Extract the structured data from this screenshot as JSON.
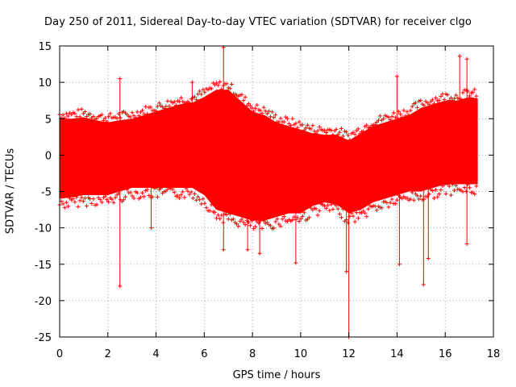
{
  "chart_data": {
    "type": "scatter",
    "title": "Day 250 of 2011, Sidereal Day-to-day VTEC variation (SDTVAR) for receiver clgo",
    "xlabel": "GPS time / hours",
    "ylabel": "SDTVAR / TECUs",
    "xlim": [
      0,
      18
    ],
    "ylim": [
      -25,
      15
    ],
    "xticks": [
      "0",
      "2",
      "4",
      "6",
      "8",
      "10",
      "12",
      "14",
      "16",
      "18"
    ],
    "yticks": [
      "15",
      "10",
      "5",
      "0",
      "-5",
      "-10",
      "-15",
      "-20",
      "-25"
    ],
    "grid": true,
    "series": [
      {
        "name": "SDTVAR",
        "color": "#ff0000",
        "marker": "+",
        "data_extent_hours": [
          0,
          17.35
        ],
        "envelope": {
          "x": [
            0,
            0.5,
            1,
            1.5,
            2,
            2.5,
            3,
            3.5,
            4,
            4.5,
            5,
            5.5,
            6,
            6.5,
            7,
            7.5,
            8,
            8.5,
            9,
            9.5,
            10,
            10.5,
            11,
            11.5,
            12,
            12.5,
            13,
            13.5,
            14,
            14.5,
            15,
            15.5,
            16,
            16.5,
            17,
            17.35
          ],
          "upper": [
            5,
            5,
            5.2,
            4.8,
            4.5,
            4.8,
            5,
            5.5,
            6,
            6.5,
            7,
            7.2,
            8,
            9,
            9,
            7.5,
            6,
            5.5,
            4.5,
            4,
            3.5,
            3,
            2.8,
            2.8,
            2,
            3,
            4,
            4.5,
            5,
            5.5,
            6.5,
            7,
            7.5,
            7.5,
            8,
            7.8
          ],
          "lower": [
            -6,
            -5.8,
            -5.5,
            -5.5,
            -5.5,
            -5,
            -4.5,
            -4.5,
            -4.5,
            -4.5,
            -4.5,
            -4.5,
            -5.5,
            -7.5,
            -8,
            -8.5,
            -9,
            -9,
            -8.5,
            -8,
            -8,
            -7,
            -6.5,
            -6.8,
            -8,
            -7.5,
            -6.5,
            -6,
            -5.5,
            -5,
            -5,
            -4.5,
            -4,
            -4,
            -4,
            -4
          ]
        },
        "spikes": [
          {
            "x": 2.5,
            "y": 10.5
          },
          {
            "x": 2.5,
            "y": -18
          },
          {
            "x": 3.8,
            "y": -10
          },
          {
            "x": 5.5,
            "y": 10
          },
          {
            "x": 6.8,
            "y": 14.8
          },
          {
            "x": 6.8,
            "y": -13
          },
          {
            "x": 7.8,
            "y": -13
          },
          {
            "x": 8.3,
            "y": -13.5
          },
          {
            "x": 9.8,
            "y": -14.8
          },
          {
            "x": 11.9,
            "y": -16
          },
          {
            "x": 12.0,
            "y": -25
          },
          {
            "x": 14.0,
            "y": 10.8
          },
          {
            "x": 14.1,
            "y": -15
          },
          {
            "x": 15.1,
            "y": -17.8
          },
          {
            "x": 15.3,
            "y": -14.2
          },
          {
            "x": 16.6,
            "y": 13.6
          },
          {
            "x": 16.9,
            "y": 13.2
          },
          {
            "x": 16.9,
            "y": -12.2
          }
        ]
      }
    ]
  }
}
